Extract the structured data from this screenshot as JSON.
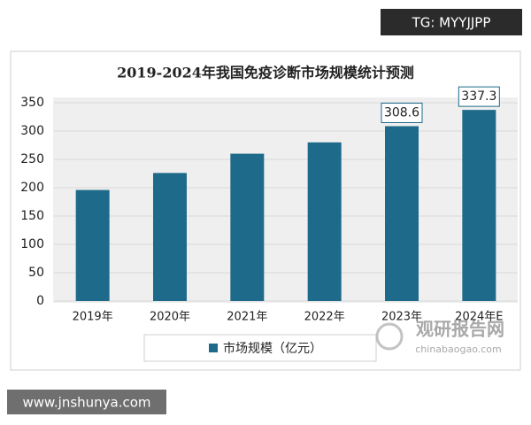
{
  "chart_data": {
    "type": "bar",
    "title": "2019-2024年我国免疫诊断市场规模统计预测",
    "categories": [
      "2019年",
      "2020年",
      "2021年",
      "2022年",
      "2023年",
      "2024年E"
    ],
    "series": [
      {
        "name": "市场规模（亿元）",
        "color": "#1e6a8a",
        "values": [
          196,
          226,
          260,
          280,
          308.6,
          337.3
        ],
        "value_labels": [
          null,
          null,
          null,
          null,
          "308.6",
          "337.3"
        ]
      }
    ],
    "ylim": [
      0,
      350
    ],
    "yticks": [
      0,
      50,
      100,
      150,
      200,
      250,
      300,
      350
    ],
    "grid": true
  },
  "watermarks": [
    "TG: MYYJJPP",
    "www.jnshunya.com",
    "观研报告网",
    "chinabaogao.com"
  ]
}
